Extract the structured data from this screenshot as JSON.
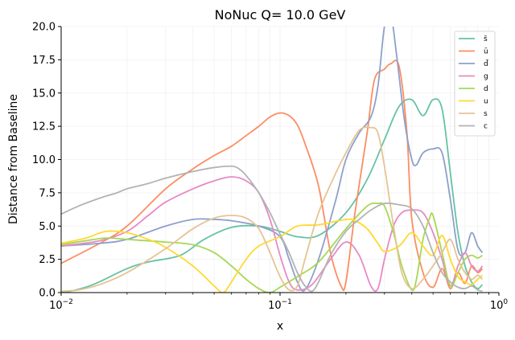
{
  "chart_data": {
    "type": "line",
    "title": "NoNuc Q= 10.0 GeV",
    "xlabel": "x",
    "ylabel": "Distance from Baseline",
    "xscale": "log",
    "xlim": [
      0.01,
      1.0
    ],
    "ylim": [
      0,
      20
    ],
    "x_ticks": [
      {
        "value": 0.01,
        "base": "10",
        "exp": "−2"
      },
      {
        "value": 0.1,
        "base": "10",
        "exp": "−1"
      },
      {
        "value": 1.0,
        "base": "10",
        "exp": "0"
      }
    ],
    "y_ticks": [
      {
        "value": 0,
        "label": "0.0"
      },
      {
        "value": 2.5,
        "label": "2.5"
      },
      {
        "value": 5,
        "label": "5.0"
      },
      {
        "value": 7.5,
        "label": "7.5"
      },
      {
        "value": 10,
        "label": "10.0"
      },
      {
        "value": 12.5,
        "label": "12.5"
      },
      {
        "value": 15,
        "label": "15.0"
      },
      {
        "value": 17.5,
        "label": "17.5"
      },
      {
        "value": 20,
        "label": "20.0"
      }
    ],
    "grid": true,
    "legend_position": "top-right",
    "series": [
      {
        "name": "s̄",
        "color": "#66c2a5",
        "x": [
          0.01,
          0.011,
          0.014,
          0.02,
          0.025,
          0.035,
          0.045,
          0.06,
          0.08,
          0.1,
          0.12,
          0.15,
          0.2,
          0.25,
          0.3,
          0.35,
          0.4,
          0.45,
          0.5,
          0.55,
          0.6,
          0.65,
          0.7,
          0.75,
          0.8,
          0.84
        ],
        "y": [
          0.0,
          0.1,
          0.6,
          1.8,
          2.3,
          2.8,
          4.0,
          4.9,
          5.0,
          4.6,
          4.2,
          4.3,
          6.0,
          8.5,
          11.5,
          14.0,
          14.5,
          13.3,
          14.5,
          13.8,
          9.0,
          4.5,
          2.0,
          0.8,
          0.3,
          0.6
        ]
      },
      {
        "name": "ū",
        "color": "#fc8d62",
        "x": [
          0.01,
          0.015,
          0.02,
          0.03,
          0.04,
          0.05,
          0.06,
          0.07,
          0.08,
          0.09,
          0.1,
          0.11,
          0.12,
          0.13,
          0.15,
          0.17,
          0.19,
          0.2,
          0.22,
          0.25,
          0.27,
          0.3,
          0.32,
          0.35,
          0.38,
          0.4,
          0.45,
          0.5,
          0.55,
          0.6,
          0.65,
          0.7,
          0.75,
          0.8,
          0.84
        ],
        "y": [
          2.2,
          3.7,
          5.0,
          7.8,
          9.3,
          10.3,
          11.0,
          11.8,
          12.5,
          13.2,
          13.5,
          13.3,
          12.6,
          11.2,
          8.0,
          3.0,
          0.5,
          0.8,
          6.0,
          12.0,
          16.0,
          16.8,
          17.2,
          17.0,
          12.0,
          5.5,
          1.5,
          0.4,
          1.8,
          0.3,
          1.5,
          0.7,
          2.0,
          1.5,
          1.8
        ]
      },
      {
        "name": "d̄",
        "color": "#8da0cb",
        "x": [
          0.01,
          0.015,
          0.02,
          0.03,
          0.04,
          0.05,
          0.06,
          0.08,
          0.1,
          0.11,
          0.12,
          0.13,
          0.15,
          0.18,
          0.2,
          0.23,
          0.26,
          0.28,
          0.3,
          0.32,
          0.34,
          0.37,
          0.4,
          0.42,
          0.45,
          0.5,
          0.55,
          0.6,
          0.65,
          0.7,
          0.75,
          0.8,
          0.84
        ],
        "y": [
          3.5,
          3.7,
          4.0,
          5.0,
          5.5,
          5.5,
          5.4,
          5.0,
          4.2,
          2.5,
          0.8,
          0.2,
          2.5,
          7.0,
          10.0,
          12.0,
          13.2,
          15.5,
          20.0,
          21.0,
          18.0,
          13.0,
          10.0,
          9.6,
          10.5,
          10.8,
          10.5,
          7.0,
          3.2,
          3.0,
          4.5,
          3.5,
          3.0
        ]
      },
      {
        "name": "g",
        "color": "#e78ac3",
        "x": [
          0.01,
          0.015,
          0.02,
          0.025,
          0.03,
          0.04,
          0.05,
          0.06,
          0.07,
          0.08,
          0.09,
          0.1,
          0.11,
          0.12,
          0.14,
          0.17,
          0.2,
          0.23,
          0.26,
          0.28,
          0.3,
          0.33,
          0.36,
          0.4,
          0.45,
          0.5,
          0.55,
          0.6,
          0.65,
          0.7,
          0.75,
          0.8,
          0.84
        ],
        "y": [
          3.5,
          3.9,
          4.6,
          5.8,
          6.8,
          7.8,
          8.4,
          8.7,
          8.4,
          7.5,
          5.5,
          2.8,
          0.8,
          0.2,
          0.6,
          2.5,
          3.8,
          2.8,
          0.5,
          0.3,
          2.5,
          5.0,
          6.0,
          6.2,
          6.0,
          4.5,
          2.5,
          0.5,
          2.0,
          3.0,
          2.0,
          1.6,
          2.0
        ]
      },
      {
        "name": "d",
        "color": "#a6d854",
        "x": [
          0.01,
          0.013,
          0.016,
          0.02,
          0.03,
          0.04,
          0.05,
          0.06,
          0.07,
          0.08,
          0.09,
          0.1,
          0.12,
          0.15,
          0.2,
          0.25,
          0.28,
          0.3,
          0.33,
          0.36,
          0.4,
          0.42,
          0.45,
          0.48,
          0.5,
          0.55,
          0.6,
          0.65,
          0.7,
          0.75,
          0.8,
          0.84
        ],
        "y": [
          3.6,
          3.9,
          4.1,
          4.0,
          3.8,
          3.6,
          3.0,
          2.0,
          1.0,
          0.3,
          0.0,
          0.4,
          1.2,
          2.3,
          4.8,
          6.5,
          6.7,
          6.5,
          4.5,
          2.0,
          0.2,
          1.0,
          4.0,
          5.5,
          5.8,
          3.0,
          0.5,
          1.5,
          2.5,
          2.8,
          2.6,
          2.8
        ]
      },
      {
        "name": "u",
        "color": "#ffd92f",
        "x": [
          0.01,
          0.013,
          0.016,
          0.02,
          0.025,
          0.03,
          0.04,
          0.05,
          0.055,
          0.06,
          0.07,
          0.08,
          0.1,
          0.12,
          0.15,
          0.2,
          0.22,
          0.25,
          0.28,
          0.3,
          0.35,
          0.4,
          0.45,
          0.5,
          0.55,
          0.6,
          0.65,
          0.7,
          0.75,
          0.8,
          0.84
        ],
        "y": [
          3.7,
          4.1,
          4.6,
          4.5,
          4.0,
          3.4,
          2.0,
          0.5,
          0.0,
          0.8,
          2.5,
          3.5,
          4.2,
          5.0,
          5.1,
          5.5,
          5.4,
          4.8,
          3.7,
          3.1,
          3.5,
          4.5,
          3.5,
          2.8,
          4.3,
          2.5,
          1.2,
          0.8,
          0.6,
          1.0,
          1.3
        ]
      },
      {
        "name": "s",
        "color": "#e5c494",
        "x": [
          0.01,
          0.012,
          0.015,
          0.02,
          0.03,
          0.04,
          0.05,
          0.06,
          0.07,
          0.08,
          0.09,
          0.1,
          0.11,
          0.12,
          0.13,
          0.15,
          0.18,
          0.2,
          0.23,
          0.26,
          0.28,
          0.3,
          0.33,
          0.36,
          0.4,
          0.45,
          0.5,
          0.55,
          0.6,
          0.65,
          0.7,
          0.75,
          0.8,
          0.84
        ],
        "y": [
          0.1,
          0.2,
          0.6,
          1.5,
          3.3,
          4.8,
          5.6,
          5.8,
          5.6,
          4.8,
          3.0,
          1.2,
          0.2,
          0.5,
          2.5,
          6.0,
          9.0,
          10.5,
          12.2,
          12.4,
          12.0,
          9.5,
          5.0,
          1.5,
          0.3,
          1.0,
          2.0,
          3.0,
          4.0,
          2.5,
          1.5,
          1.0,
          1.3,
          1.0
        ]
      },
      {
        "name": "c",
        "color": "#b3b3b3",
        "x": [
          0.01,
          0.012,
          0.015,
          0.018,
          0.02,
          0.025,
          0.03,
          0.04,
          0.05,
          0.06,
          0.065,
          0.07,
          0.08,
          0.09,
          0.1,
          0.11,
          0.12,
          0.13,
          0.14,
          0.15,
          0.17,
          0.2,
          0.23,
          0.26,
          0.3,
          0.35,
          0.4,
          0.45,
          0.5,
          0.55,
          0.6,
          0.65,
          0.7,
          0.75,
          0.8,
          0.84
        ],
        "y": [
          5.9,
          6.5,
          7.1,
          7.5,
          7.8,
          8.2,
          8.6,
          9.1,
          9.4,
          9.5,
          9.3,
          8.8,
          7.5,
          6.0,
          4.4,
          3.0,
          1.5,
          0.5,
          0.1,
          0.8,
          2.8,
          4.6,
          5.5,
          6.2,
          6.7,
          6.6,
          6.3,
          5.0,
          3.0,
          1.5,
          0.8,
          0.4,
          0.3,
          0.5,
          0.2,
          0.1
        ]
      }
    ]
  }
}
